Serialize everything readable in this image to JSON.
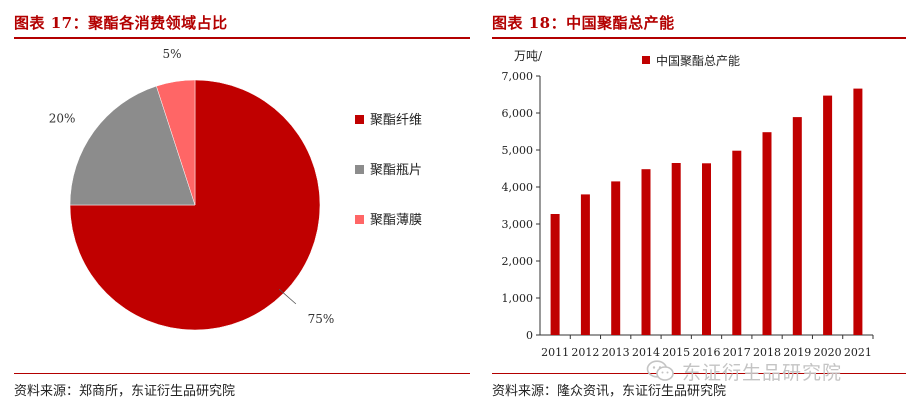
{
  "colors": {
    "accent": "#b30000",
    "pie_fiber": "#c00000",
    "pie_bottle": "#8c8c8c",
    "pie_film": "#ff6666",
    "bar": "#c00000"
  },
  "left_panel": {
    "title": "图表 17：聚酯各消费领域占比",
    "source": "资料来源：郑商所，东证衍生品研究院"
  },
  "right_panel": {
    "title": "图表 18：中国聚酯总产能",
    "source": "资料来源：隆众资讯，东证衍生品研究院"
  },
  "watermark": {
    "icon": "wechat-icon",
    "text": "东证衍生品研究院"
  },
  "chart_data": [
    {
      "type": "pie",
      "title": "",
      "slices": [
        {
          "label": "聚酯纤维",
          "value": 75,
          "value_label": "75%"
        },
        {
          "label": "聚酯瓶片",
          "value": 20,
          "value_label": "20%"
        },
        {
          "label": "聚酯薄膜",
          "value": 5,
          "value_label": "5%"
        }
      ],
      "legend_position": "right"
    },
    {
      "type": "bar",
      "title": "",
      "ylabel": "万吨/",
      "categories": [
        "2011",
        "2012",
        "2013",
        "2014",
        "2015",
        "2016",
        "2017",
        "2018",
        "2019",
        "2020",
        "2021"
      ],
      "series": [
        {
          "name": "中国聚酯总产能",
          "values": [
            3270,
            3800,
            4150,
            4480,
            4650,
            4640,
            4980,
            5480,
            5890,
            6470,
            6660
          ]
        }
      ],
      "ylim": [
        0,
        7000
      ],
      "yticks": [
        "0",
        "1,000",
        "2,000",
        "3,000",
        "4,000",
        "5,000",
        "6,000",
        "7,000"
      ],
      "legend_position": "top-left",
      "grid": false
    }
  ]
}
